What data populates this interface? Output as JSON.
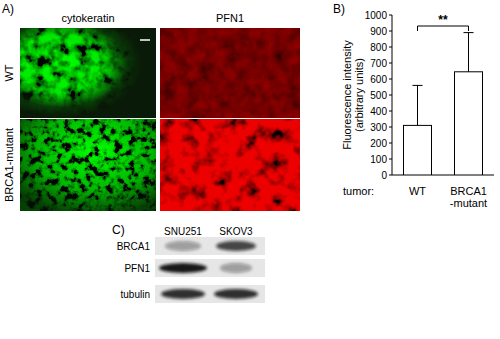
{
  "panel_a": {
    "panel_label": "A)",
    "columns": [
      "cytokeratin",
      "PFN1"
    ],
    "rows": [
      "WT",
      "BRCA1-mutant"
    ]
  },
  "chart_data": {
    "type": "bar",
    "panel_label": "B)",
    "categories": [
      "WT",
      "BRCA1-mutant"
    ],
    "values": [
      310,
      645
    ],
    "errors": [
      250,
      245
    ],
    "color": "#ffffff",
    "ylim": [
      0,
      1000
    ],
    "yticks": [
      0,
      100,
      200,
      300,
      400,
      500,
      600,
      700,
      800,
      900,
      1000
    ],
    "y_label": "Fluorescence intensity (arbitrary units)",
    "x_label": "tumor:",
    "annotation": "**",
    "grid": false
  },
  "panel_c": {
    "panel_label": "C)",
    "lanes": [
      "SNU251",
      "SKOV3"
    ],
    "rows": [
      "BRCA1",
      "PFN1",
      "tubulin"
    ]
  }
}
